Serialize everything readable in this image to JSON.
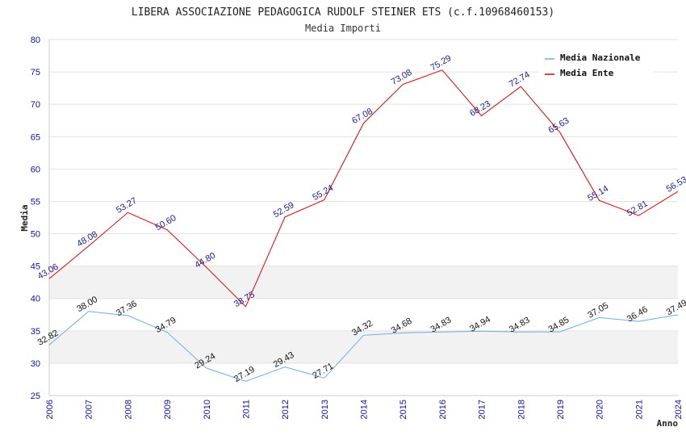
{
  "chart_data": {
    "type": "line",
    "title": "LIBERA ASSOCIAZIONE PEDAGOGICA RUDOLF STEINER ETS (c.f.10968460153)",
    "subtitle": "Media Importi",
    "xlabel": "Anno",
    "ylabel": "Media",
    "ylim": [
      25,
      80
    ],
    "yticks": [
      "25",
      "30",
      "35",
      "40",
      "45",
      "50",
      "55",
      "60",
      "65",
      "70",
      "75",
      "80"
    ],
    "x": [
      "2006",
      "2007",
      "2008",
      "2009",
      "2010",
      "2011",
      "2012",
      "2013",
      "2014",
      "2015",
      "2016",
      "2017",
      "2018",
      "2019",
      "2020",
      "2021",
      "2024"
    ],
    "grid": true,
    "legend_position": "top-right",
    "series": [
      {
        "name": "Media Nazionale",
        "color": "#6aaee6",
        "label_color": "#111111",
        "values": [
          32.82,
          38.0,
          37.36,
          34.79,
          29.24,
          27.19,
          29.43,
          27.71,
          34.32,
          34.68,
          34.83,
          34.94,
          34.83,
          34.85,
          37.05,
          36.46,
          37.49
        ],
        "labels": [
          "32.82",
          "38.00",
          "37.36",
          "34.79",
          "29.24",
          "27.19",
          "29.43",
          "27.71",
          "34.32",
          "34.68",
          "34.83",
          "34.94",
          "34.83",
          "34.85",
          "37.05",
          "36.46",
          "37.49"
        ]
      },
      {
        "name": "Media Ente",
        "color": "#e00000",
        "label_color": "#1a1a8c",
        "values": [
          43.06,
          48.08,
          53.27,
          50.6,
          44.8,
          38.75,
          52.59,
          55.24,
          67.08,
          73.08,
          75.29,
          68.23,
          72.74,
          65.63,
          55.14,
          52.81,
          56.53
        ],
        "labels": [
          "43.06",
          "48.08",
          "53.27",
          "50.60",
          "44.80",
          "38.75",
          "52.59",
          "55.24",
          "67.08",
          "73.08",
          "75.29",
          "68.23",
          "72.74",
          "65.63",
          "55.14",
          "52.81",
          "56.53"
        ]
      }
    ]
  }
}
